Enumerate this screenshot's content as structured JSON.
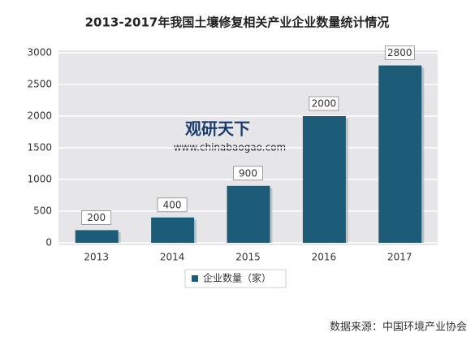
{
  "chart_data": {
    "type": "bar",
    "title": "2013-2017年我国土壤修复相关产业企业数量统计情况",
    "categories": [
      "2013",
      "2014",
      "2015",
      "2016",
      "2017"
    ],
    "series": [
      {
        "name": "企业数量（家）",
        "color": "#1d5c78",
        "values": [
          200,
          400,
          900,
          2000,
          2800
        ]
      }
    ],
    "ylim": [
      0,
      3000
    ],
    "yticks": [
      0,
      500,
      1000,
      1500,
      2000,
      2500,
      3000
    ],
    "grid": true,
    "legend": "bottom",
    "watermark": [
      "观研天下",
      "www.chinabaogao.com"
    ],
    "source": "数据来源：中国环境产业协会"
  }
}
